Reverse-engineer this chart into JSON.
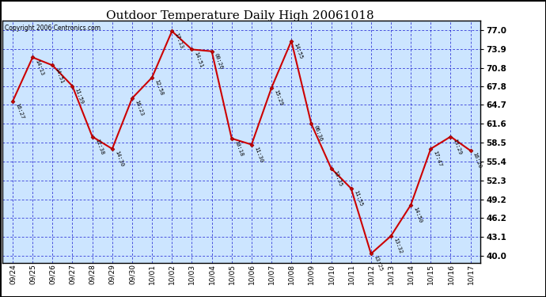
{
  "title": "Outdoor Temperature Daily High 20061018",
  "copyright": "Copyright 2006 Centronics.com",
  "bg_color": "#ffffff",
  "plot_bg": "#cce5ff",
  "line_color": "#cc0000",
  "grid_color": "#0000cc",
  "x_labels": [
    "09/24",
    "09/25",
    "09/26",
    "09/27",
    "09/28",
    "09/29",
    "09/30",
    "10/01",
    "10/02",
    "10/03",
    "10/04",
    "10/05",
    "10/06",
    "10/07",
    "10/08",
    "10/09",
    "10/10",
    "10/11",
    "10/12",
    "10/13",
    "10/14",
    "10/15",
    "10/16",
    "10/17"
  ],
  "y_ticks": [
    40.0,
    43.1,
    46.2,
    49.2,
    52.3,
    55.4,
    58.5,
    61.6,
    64.7,
    67.8,
    70.8,
    73.9,
    77.0
  ],
  "points": [
    [
      0,
      65.3,
      "16:27"
    ],
    [
      1,
      72.5,
      "14:13"
    ],
    [
      2,
      71.2,
      "14:51"
    ],
    [
      3,
      67.8,
      "11:59"
    ],
    [
      4,
      59.5,
      "12:38"
    ],
    [
      5,
      57.5,
      "14:30"
    ],
    [
      6,
      65.8,
      "16:23"
    ],
    [
      7,
      69.2,
      "12:58"
    ],
    [
      8,
      76.8,
      "17:13"
    ],
    [
      9,
      73.8,
      "14:51"
    ],
    [
      10,
      73.5,
      "00:26"
    ],
    [
      11,
      59.2,
      "10:18"
    ],
    [
      12,
      58.2,
      "11:30"
    ],
    [
      13,
      67.5,
      "15:29"
    ],
    [
      14,
      75.2,
      "14:55"
    ],
    [
      15,
      61.6,
      "06:36"
    ],
    [
      16,
      54.3,
      "13:35"
    ],
    [
      17,
      51.0,
      "11:55"
    ],
    [
      18,
      40.3,
      "13:25"
    ],
    [
      19,
      43.2,
      "13:32"
    ],
    [
      20,
      48.3,
      "14:50"
    ],
    [
      21,
      57.5,
      "17:47"
    ],
    [
      22,
      59.5,
      "13:29"
    ],
    [
      23,
      57.2,
      "16:20"
    ]
  ]
}
